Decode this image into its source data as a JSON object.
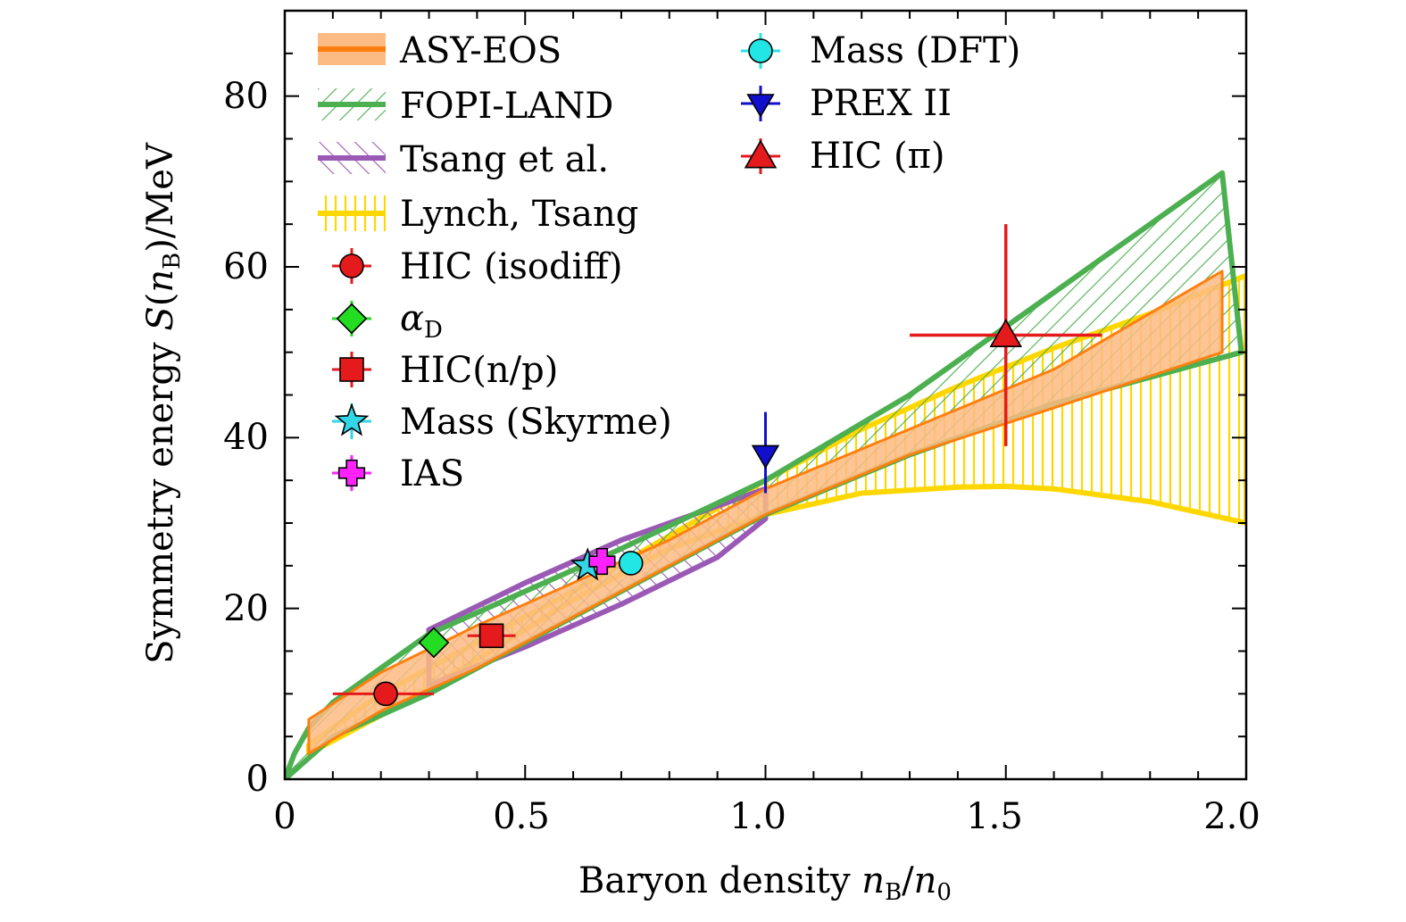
{
  "chart_data": {
    "type": "area",
    "title": "",
    "xlabel": "Baryon density n_B/n_0",
    "ylabel": "Symmetry energy S(n_B)/MeV",
    "xlim": [
      0,
      2.0
    ],
    "ylim": [
      0,
      90
    ],
    "x_ticks": [
      "0",
      "0.5",
      "1.0",
      "1.5",
      "2.0"
    ],
    "y_ticks": [
      "0",
      "20",
      "40",
      "60",
      "80"
    ],
    "grid": false,
    "legend_position": "top-left",
    "bands": [
      {
        "name": "ASY-EOS",
        "color": "#ff7f0e",
        "fill": "#fdbb84",
        "style": "solid",
        "upper": [
          [
            0.05,
            7
          ],
          [
            0.2,
            12.5
          ],
          [
            0.4,
            18
          ],
          [
            0.6,
            23
          ],
          [
            0.8,
            28
          ],
          [
            1.0,
            34
          ],
          [
            1.3,
            41
          ],
          [
            1.6,
            48
          ],
          [
            1.95,
            59.5
          ]
        ],
        "lower": [
          [
            0.05,
            3
          ],
          [
            0.2,
            8
          ],
          [
            0.4,
            13
          ],
          [
            0.6,
            19
          ],
          [
            0.8,
            25
          ],
          [
            1.0,
            31
          ],
          [
            1.3,
            38
          ],
          [
            1.6,
            43.5
          ],
          [
            1.95,
            50
          ]
        ]
      },
      {
        "name": "FOPI-LAND",
        "color": "#4caf50",
        "fill": "#4caf50",
        "style": "hatch-diagonal",
        "upper": [
          [
            0.0,
            0
          ],
          [
            0.02,
            3
          ],
          [
            0.05,
            6
          ],
          [
            0.1,
            9
          ],
          [
            0.2,
            13
          ],
          [
            0.3,
            17
          ],
          [
            0.5,
            22
          ],
          [
            0.7,
            27
          ],
          [
            1.0,
            35
          ],
          [
            1.3,
            45
          ],
          [
            1.6,
            57
          ],
          [
            1.95,
            71
          ]
        ],
        "lower": [
          [
            0.0,
            0
          ],
          [
            0.1,
            5
          ],
          [
            0.3,
            10
          ],
          [
            0.5,
            16
          ],
          [
            0.7,
            22
          ],
          [
            1.0,
            31
          ],
          [
            1.3,
            38
          ],
          [
            1.6,
            44
          ],
          [
            1.99,
            50
          ]
        ]
      },
      {
        "name": "Tsang et al.",
        "color": "#9b59b6",
        "fill": "#9b59b6",
        "style": "hatch-diagonal-reverse",
        "upper": [
          [
            0.3,
            17.5
          ],
          [
            0.5,
            23
          ],
          [
            0.7,
            28
          ],
          [
            0.9,
            32
          ],
          [
            1.0,
            34
          ]
        ],
        "lower": [
          [
            0.3,
            11
          ],
          [
            0.5,
            15.5
          ],
          [
            0.7,
            20.5
          ],
          [
            0.9,
            26
          ],
          [
            1.0,
            30.5
          ]
        ]
      },
      {
        "name": "Lynch, Tsang",
        "color": "#ffd700",
        "fill": "#ffd700",
        "style": "hatch-vertical",
        "upper": [
          [
            0.05,
            4
          ],
          [
            0.2,
            10
          ],
          [
            0.4,
            16
          ],
          [
            0.6,
            22
          ],
          [
            0.8,
            28.5
          ],
          [
            1.0,
            35
          ],
          [
            1.2,
            41
          ],
          [
            1.4,
            46
          ],
          [
            1.6,
            50.5
          ],
          [
            1.8,
            54.5
          ],
          [
            2.0,
            59
          ]
        ],
        "lower": [
          [
            0.05,
            3
          ],
          [
            0.2,
            7.5
          ],
          [
            0.4,
            14
          ],
          [
            0.6,
            21
          ],
          [
            0.8,
            27
          ],
          [
            1.0,
            31
          ],
          [
            1.2,
            33.5
          ],
          [
            1.4,
            34.2
          ],
          [
            1.5,
            34.3
          ],
          [
            1.6,
            34
          ],
          [
            1.8,
            32.5
          ],
          [
            2.0,
            30
          ]
        ]
      }
    ],
    "points": [
      {
        "name": "HIC (isodiff)",
        "marker": "circle",
        "color": "#e41a1c",
        "x": 0.21,
        "y": 10,
        "xerr": [
          0.11,
          0.1
        ],
        "yerr": [
          0,
          0
        ]
      },
      {
        "name": "αD",
        "marker": "diamond",
        "color": "#22dd22",
        "x": 0.31,
        "y": 16,
        "xerr": [
          0,
          0
        ],
        "yerr": [
          0,
          0
        ]
      },
      {
        "name": "HIC(n/p)",
        "marker": "square",
        "color": "#e41a1c",
        "x": 0.43,
        "y": 16.8,
        "xerr": [
          0.05,
          0.05
        ],
        "yerr": [
          0,
          0
        ]
      },
      {
        "name": "Mass (Skyrme)",
        "marker": "star",
        "color": "#33d6e6",
        "x": 0.63,
        "y": 25,
        "xerr": [
          0,
          0
        ],
        "yerr": [
          0,
          0
        ]
      },
      {
        "name": "IAS",
        "marker": "plus",
        "color": "#ff22ff",
        "x": 0.66,
        "y": 25.5,
        "xerr": [
          0,
          0
        ],
        "yerr": [
          0,
          0
        ]
      },
      {
        "name": "Mass (DFT)",
        "marker": "circle",
        "color": "#22e6e6",
        "x": 0.72,
        "y": 25.3,
        "xerr": [
          0,
          0
        ],
        "yerr": [
          0,
          0
        ]
      },
      {
        "name": "PREX II",
        "marker": "triangle-down",
        "color": "#1010cc",
        "x": 1.0,
        "y": 38,
        "xerr": [
          0,
          0
        ],
        "yerr": [
          4.5,
          5
        ]
      },
      {
        "name": "HIC (π)",
        "marker": "triangle-up",
        "color": "#e41a1c",
        "x": 1.5,
        "y": 52,
        "xerr": [
          0.2,
          0.2
        ],
        "yerr": [
          13,
          13
        ]
      }
    ]
  },
  "axes": {
    "x_title": {
      "main": "Baryon density ",
      "n1": "n",
      "sub1": "B",
      "slash": "/",
      "n2": "n",
      "sub2": "0"
    },
    "y_title": {
      "main": "Symmetry energy ",
      "S": "S",
      "open": "(",
      "n": "n",
      "sub": "B",
      "close": ")/MeV"
    }
  },
  "legend": {
    "left": [
      {
        "label": "ASY-EOS"
      },
      {
        "label": "FOPI-LAND"
      },
      {
        "label": "Tsang et al."
      },
      {
        "label": "Lynch, Tsang"
      },
      {
        "label": "HIC (isodiff)"
      },
      {
        "label_main": "α",
        "label_sub": "D"
      },
      {
        "label": "HIC(n/p)"
      },
      {
        "label": "Mass (Skyrme)"
      },
      {
        "label": "IAS"
      }
    ],
    "right": [
      {
        "label": "Mass (DFT)"
      },
      {
        "label": "PREX II"
      },
      {
        "label": "HIC (π)"
      }
    ]
  }
}
